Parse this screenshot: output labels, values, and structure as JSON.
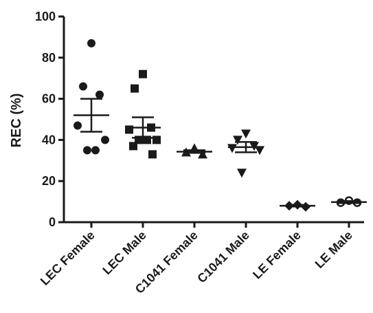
{
  "chart_data": {
    "type": "scatter",
    "ylabel": "REC (%)",
    "ylim": [
      0,
      100
    ],
    "yticks": [
      0,
      20,
      40,
      60,
      80,
      100
    ],
    "grid": false,
    "legend": "none",
    "categories": [
      "LEC Female",
      "LEC Male",
      "C1041 Female",
      "C1041 Male",
      "LE Female",
      "LE Male"
    ],
    "series": [
      {
        "category": "LEC Female",
        "marker": "circle",
        "points": [
          87,
          66,
          62,
          47,
          40,
          35,
          35
        ],
        "mean": 52,
        "sem_low": 44,
        "sem_high": 60
      },
      {
        "category": "LEC Male",
        "marker": "square",
        "points": [
          72,
          65,
          46,
          45,
          40,
          40,
          40,
          37,
          33
        ],
        "mean": 46,
        "sem_low": 41,
        "sem_high": 51
      },
      {
        "category": "C1041 Female",
        "marker": "triangle-up",
        "points": [
          36,
          34,
          33
        ],
        "mean": 34.3,
        "sem_low": 33.7,
        "sem_high": 35
      },
      {
        "category": "C1041 Male",
        "marker": "triangle-down",
        "points": [
          43,
          40,
          37,
          36,
          35,
          24
        ],
        "mean": 36.5,
        "sem_low": 34,
        "sem_high": 39
      },
      {
        "category": "LE Female",
        "marker": "diamond",
        "points": [
          8.5,
          8,
          7.5
        ],
        "mean": 8,
        "sem_low": 7.6,
        "sem_high": 8.4
      },
      {
        "category": "LE Male",
        "marker": "circle-open",
        "points": [
          10.5,
          9.5,
          9.5
        ],
        "mean": 9.8,
        "sem_low": 9.3,
        "sem_high": 10.3
      }
    ],
    "colors": {
      "marks": "#1a1a1a",
      "axis": "#1a1a1a",
      "background": "#ffffff"
    }
  }
}
